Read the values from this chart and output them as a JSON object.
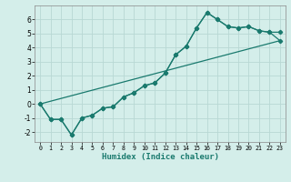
{
  "title": "",
  "xlabel": "Humidex (Indice chaleur)",
  "ylabel": "",
  "bg_color": "#d4eeea",
  "grid_color": "#b8d8d4",
  "line_color": "#1a7a6e",
  "xlim": [
    -0.5,
    23.5
  ],
  "ylim": [
    -2.7,
    7.0
  ],
  "xticks": [
    0,
    1,
    2,
    3,
    4,
    5,
    6,
    7,
    8,
    9,
    10,
    11,
    12,
    13,
    14,
    15,
    16,
    17,
    18,
    19,
    20,
    21,
    22,
    23
  ],
  "yticks": [
    -2,
    -1,
    0,
    1,
    2,
    3,
    4,
    5,
    6
  ],
  "series1_x": [
    0,
    1,
    2,
    3,
    4,
    5,
    6,
    7,
    8,
    9,
    10,
    11,
    12,
    13,
    14,
    15,
    16,
    17,
    18,
    19,
    20,
    21,
    22,
    23
  ],
  "series1_y": [
    0.0,
    -1.1,
    -1.1,
    -2.2,
    -1.0,
    -0.8,
    -0.3,
    -0.2,
    0.5,
    0.8,
    1.3,
    1.5,
    2.2,
    3.5,
    4.1,
    5.4,
    6.5,
    6.0,
    5.5,
    5.4,
    5.5,
    5.2,
    5.1,
    5.1
  ],
  "series2_x": [
    0,
    1,
    2,
    3,
    4,
    5,
    6,
    7,
    8,
    9,
    10,
    11,
    12,
    13,
    14,
    15,
    16,
    17,
    18,
    19,
    20,
    21,
    22,
    23
  ],
  "series2_y": [
    0.0,
    -1.1,
    -1.1,
    -2.2,
    -1.0,
    -0.8,
    -0.3,
    -0.2,
    0.5,
    0.8,
    1.3,
    1.5,
    2.2,
    3.5,
    4.1,
    5.4,
    6.5,
    6.0,
    5.5,
    5.4,
    5.5,
    5.2,
    5.1,
    4.5
  ],
  "series3_x": [
    0,
    23
  ],
  "series3_y": [
    0.0,
    4.5
  ],
  "marker": "D",
  "markersize": 2.2,
  "linewidth": 0.9
}
